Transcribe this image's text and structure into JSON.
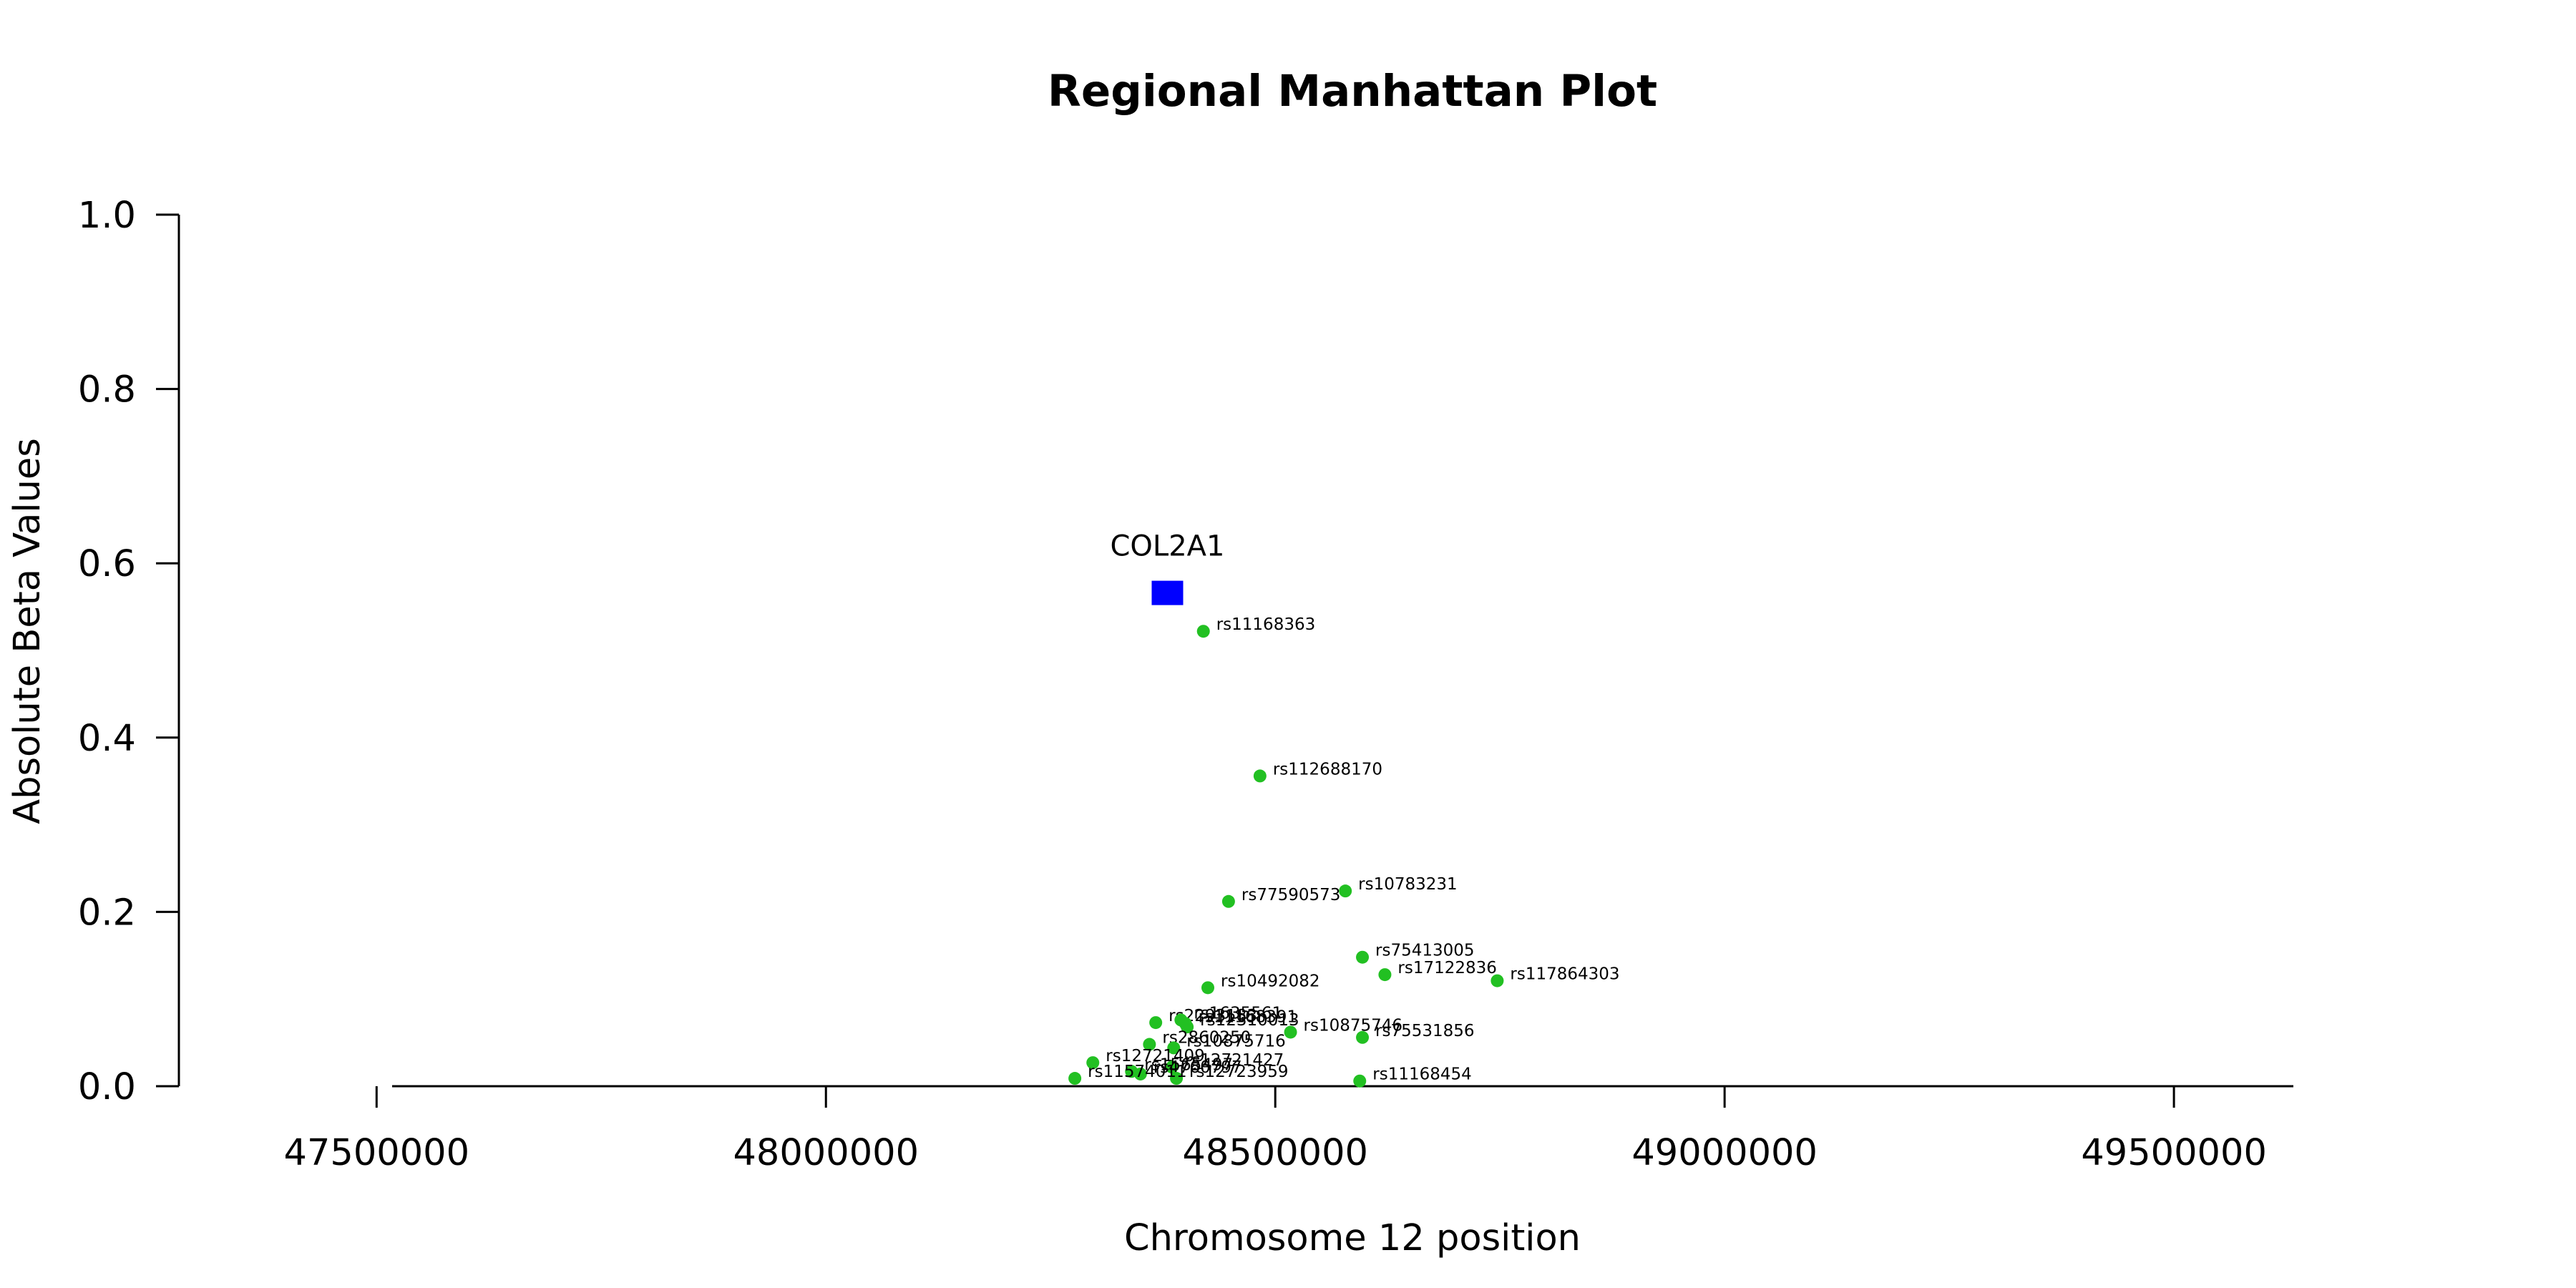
{
  "chart_data": {
    "type": "scatter",
    "title": "Regional Manhattan Plot",
    "xlabel": "Chromosome 12 position",
    "ylabel": "Absolute Beta Values",
    "xlim": [
      47280000,
      49820000
    ],
    "ylim": [
      0,
      1.0
    ],
    "xticks": [
      47500000,
      48000000,
      48500000,
      49000000,
      49500000
    ],
    "yticks": [
      0.0,
      0.2,
      0.4,
      0.6,
      0.8,
      1.0
    ],
    "ytick_labels": [
      "0.0",
      "0.2",
      "0.4",
      "0.6",
      "0.8",
      "1.0"
    ],
    "grid": false,
    "gene": {
      "name": "COL2A1",
      "x": 48380000,
      "y": 0.566,
      "color": "#0000ff"
    },
    "series": [
      {
        "color": "#22c022",
        "points": [
          {
            "label": "rs11168363",
            "x": 48420000,
            "y": 0.522
          },
          {
            "label": "rs112688170",
            "x": 48483000,
            "y": 0.356
          },
          {
            "label": "rs10783231",
            "x": 48578000,
            "y": 0.224
          },
          {
            "label": "rs77590573",
            "x": 48448000,
            "y": 0.212
          },
          {
            "label": "rs75413005",
            "x": 48597000,
            "y": 0.148
          },
          {
            "label": "rs17122836",
            "x": 48622000,
            "y": 0.128
          },
          {
            "label": "rs117864303",
            "x": 48747000,
            "y": 0.121
          },
          {
            "label": "rs10492082",
            "x": 48425000,
            "y": 0.113
          },
          {
            "label": "rs2293183",
            "x": 48367000,
            "y": 0.073
          },
          {
            "label": "rs1635561",
            "x": 48395000,
            "y": 0.076
          },
          {
            "label": "rs11168391",
            "x": 48400000,
            "y": 0.072
          },
          {
            "label": "rs12310013",
            "x": 48402000,
            "y": 0.068
          },
          {
            "label": "rs10875746",
            "x": 48517000,
            "y": 0.062
          },
          {
            "label": "rs75531856",
            "x": 48597000,
            "y": 0.056
          },
          {
            "label": "rs2860250",
            "x": 48360000,
            "y": 0.048
          },
          {
            "label": "rs10875716",
            "x": 48387000,
            "y": 0.044
          },
          {
            "label": "rs12721409",
            "x": 48297000,
            "y": 0.027
          },
          {
            "label": "rs12721427",
            "x": 48385000,
            "y": 0.022
          },
          {
            "label": "rs1565497",
            "x": 48340000,
            "y": 0.017
          },
          {
            "label": "rs4760797",
            "x": 48350000,
            "y": 0.014
          },
          {
            "label": "rs12723959",
            "x": 48390000,
            "y": 0.009
          },
          {
            "label": "rs11574011",
            "x": 48277000,
            "y": 0.009
          },
          {
            "label": "rs11168454",
            "x": 48594000,
            "y": 0.006
          }
        ]
      }
    ]
  }
}
